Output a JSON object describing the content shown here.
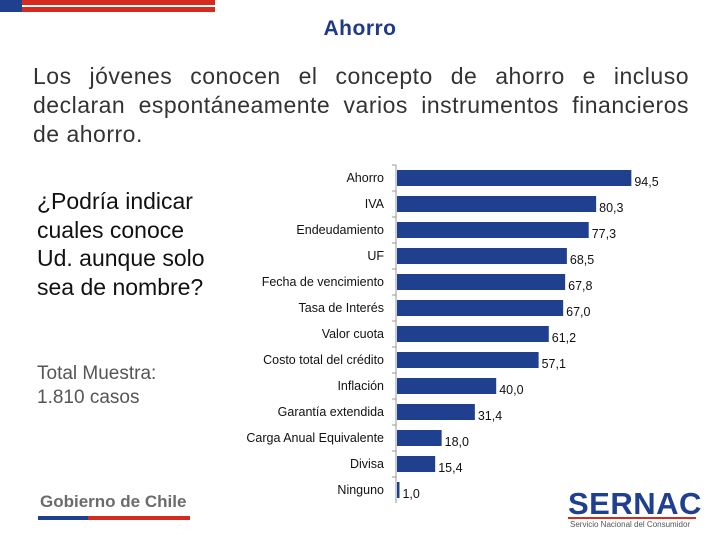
{
  "title": "Ahorro",
  "intro": "Los jóvenes conocen el concepto de ahorro e incluso declaran espontáneamente varios instrumentos financieros de ahorro.",
  "question": "¿Podría indicar cuales conoce Ud. aunque solo sea de nombre?",
  "sample": "Total Muestra: 1.810 casos",
  "footer": {
    "gobierno": "Gobierno de Chile",
    "brand": "SERNAC",
    "brand_tagline": "Servicio Nacional del Consumidor"
  },
  "colors": {
    "bar": "#1f3f8f",
    "title": "#1f3a8a",
    "flag_blue": "#1f3f8f",
    "flag_red": "#d52b1e"
  },
  "chart_data": {
    "type": "bar",
    "orientation": "horizontal",
    "categories": [
      "Ahorro",
      "IVA",
      "Endeudamiento",
      "UF",
      "Fecha  de vencimiento",
      "Tasa de Interés",
      "Valor cuota",
      "Costo total del crédito",
      "Inflación",
      "Garantía extendida",
      "Carga Anual Equivalente",
      "Divisa",
      "Ninguno"
    ],
    "values": [
      94.5,
      80.3,
      77.3,
      68.5,
      67.8,
      67.0,
      61.2,
      57.1,
      40.0,
      31.4,
      18.0,
      15.4,
      1.0
    ],
    "value_labels": [
      "94,5",
      "80,3",
      "77,3",
      "68,5",
      "67,8",
      "67,0",
      "61,2",
      "57,1",
      "40,0",
      "31,4",
      "18,0",
      "15,4",
      "1,0"
    ],
    "xlim": [
      0,
      100
    ],
    "title": "",
    "xlabel": "",
    "ylabel": "",
    "grid": false,
    "legend": "none"
  }
}
